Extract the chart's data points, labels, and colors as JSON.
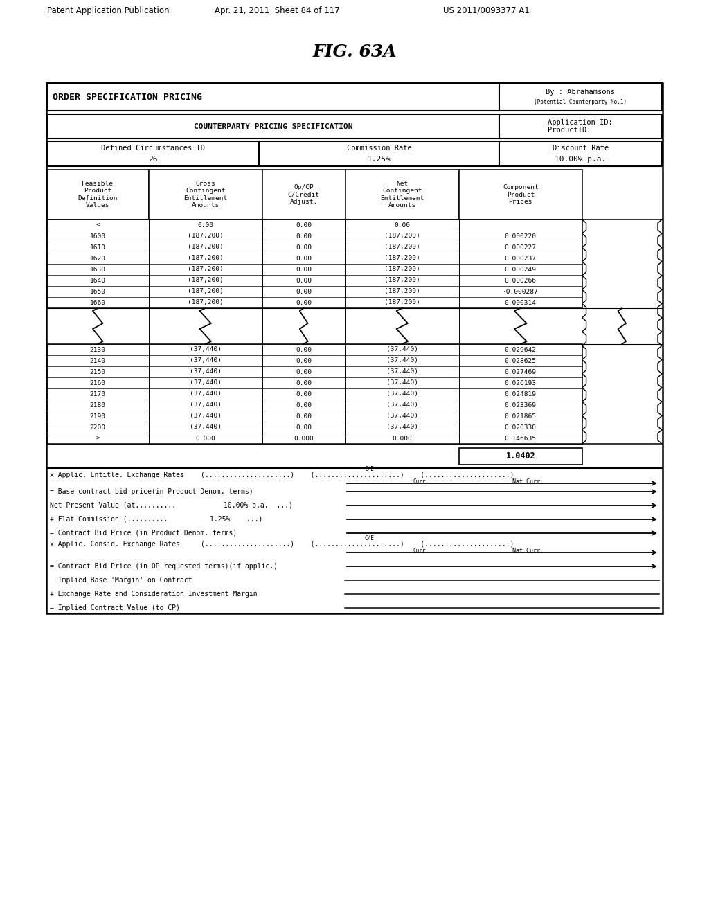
{
  "title": "FIG. 63A",
  "header_title": "ORDER SPECIFICATION PRICING",
  "header_right_line1": "By : Abrahamsons",
  "header_right_line2": "(Potential Counterparty No.1)",
  "counterparty_label": "COUNTERPARTY PRICING SPECIFICATION",
  "app_id_label": "Application ID:\nProductID:",
  "defined_circ_top": "Defined Circumstances ID",
  "defined_circ_bot": "26",
  "commission_top": "Commission Rate",
  "commission_bot": "1.25%",
  "discount_top": "Discount Rate",
  "discount_bot": "10.00% p.a.",
  "col_headers": [
    "Feasible\nProduct\nDefinition\nValues",
    "Gross\nContingent\nEntitlement\nAmounts",
    "Op/CP\nC/Credit\nAdjust.",
    "Net\nContingent\nEntitlement\nAmounts",
    "Component\nProduct\nPrices"
  ],
  "top_rows": [
    [
      "<",
      "0.00",
      "0.00",
      "0.00",
      ""
    ],
    [
      "1600",
      "(187,200)",
      "0.00",
      "(187,200)",
      "0.000220"
    ],
    [
      "1610",
      "(187,200)",
      "0.00",
      "(187,200)",
      "0.000227"
    ],
    [
      "1620",
      "(187,200)",
      "0.00",
      "(187,200)",
      "0.000237"
    ],
    [
      "1630",
      "(187,200)",
      "0.00",
      "(187,200)",
      "0.000249"
    ],
    [
      "1640",
      "(187,200)",
      "0.00",
      "(187,200)",
      "0.000266"
    ],
    [
      "1650",
      "(187,200)",
      "0.00",
      "(187,200)",
      "·0.000287"
    ],
    [
      "1660",
      "(187,200)",
      "0.00",
      "(187,200)",
      "0.000314"
    ]
  ],
  "bottom_rows": [
    [
      "2130",
      "(37,440)",
      "0.00",
      "(37,440)",
      "0.029642"
    ],
    [
      "2140",
      "(37,440)",
      "0.00",
      "(37,440)",
      "0.028625"
    ],
    [
      "2150",
      "(37,440)",
      "0.00",
      "(37,440)",
      "0.027469"
    ],
    [
      "2160",
      "(37,440)",
      "0.00",
      "(37,440)",
      "0.026193"
    ],
    [
      "2170",
      "(37,440)",
      "0.00",
      "(37,440)",
      "0.024819"
    ],
    [
      "2180",
      "(37,440)",
      "0.00",
      "(37,440)",
      "0.023369"
    ],
    [
      "2190",
      "(37,440)",
      "0.00",
      "(37,440)",
      "0.021865"
    ],
    [
      "2200",
      "(37,440)",
      "0.00",
      "(37,440)",
      "0.020330"
    ],
    [
      ">",
      "0.000",
      "0.000",
      "0.000",
      "0.146635"
    ]
  ],
  "total_value": "1.0402",
  "bg_color": "#ffffff",
  "text_color": "#000000"
}
